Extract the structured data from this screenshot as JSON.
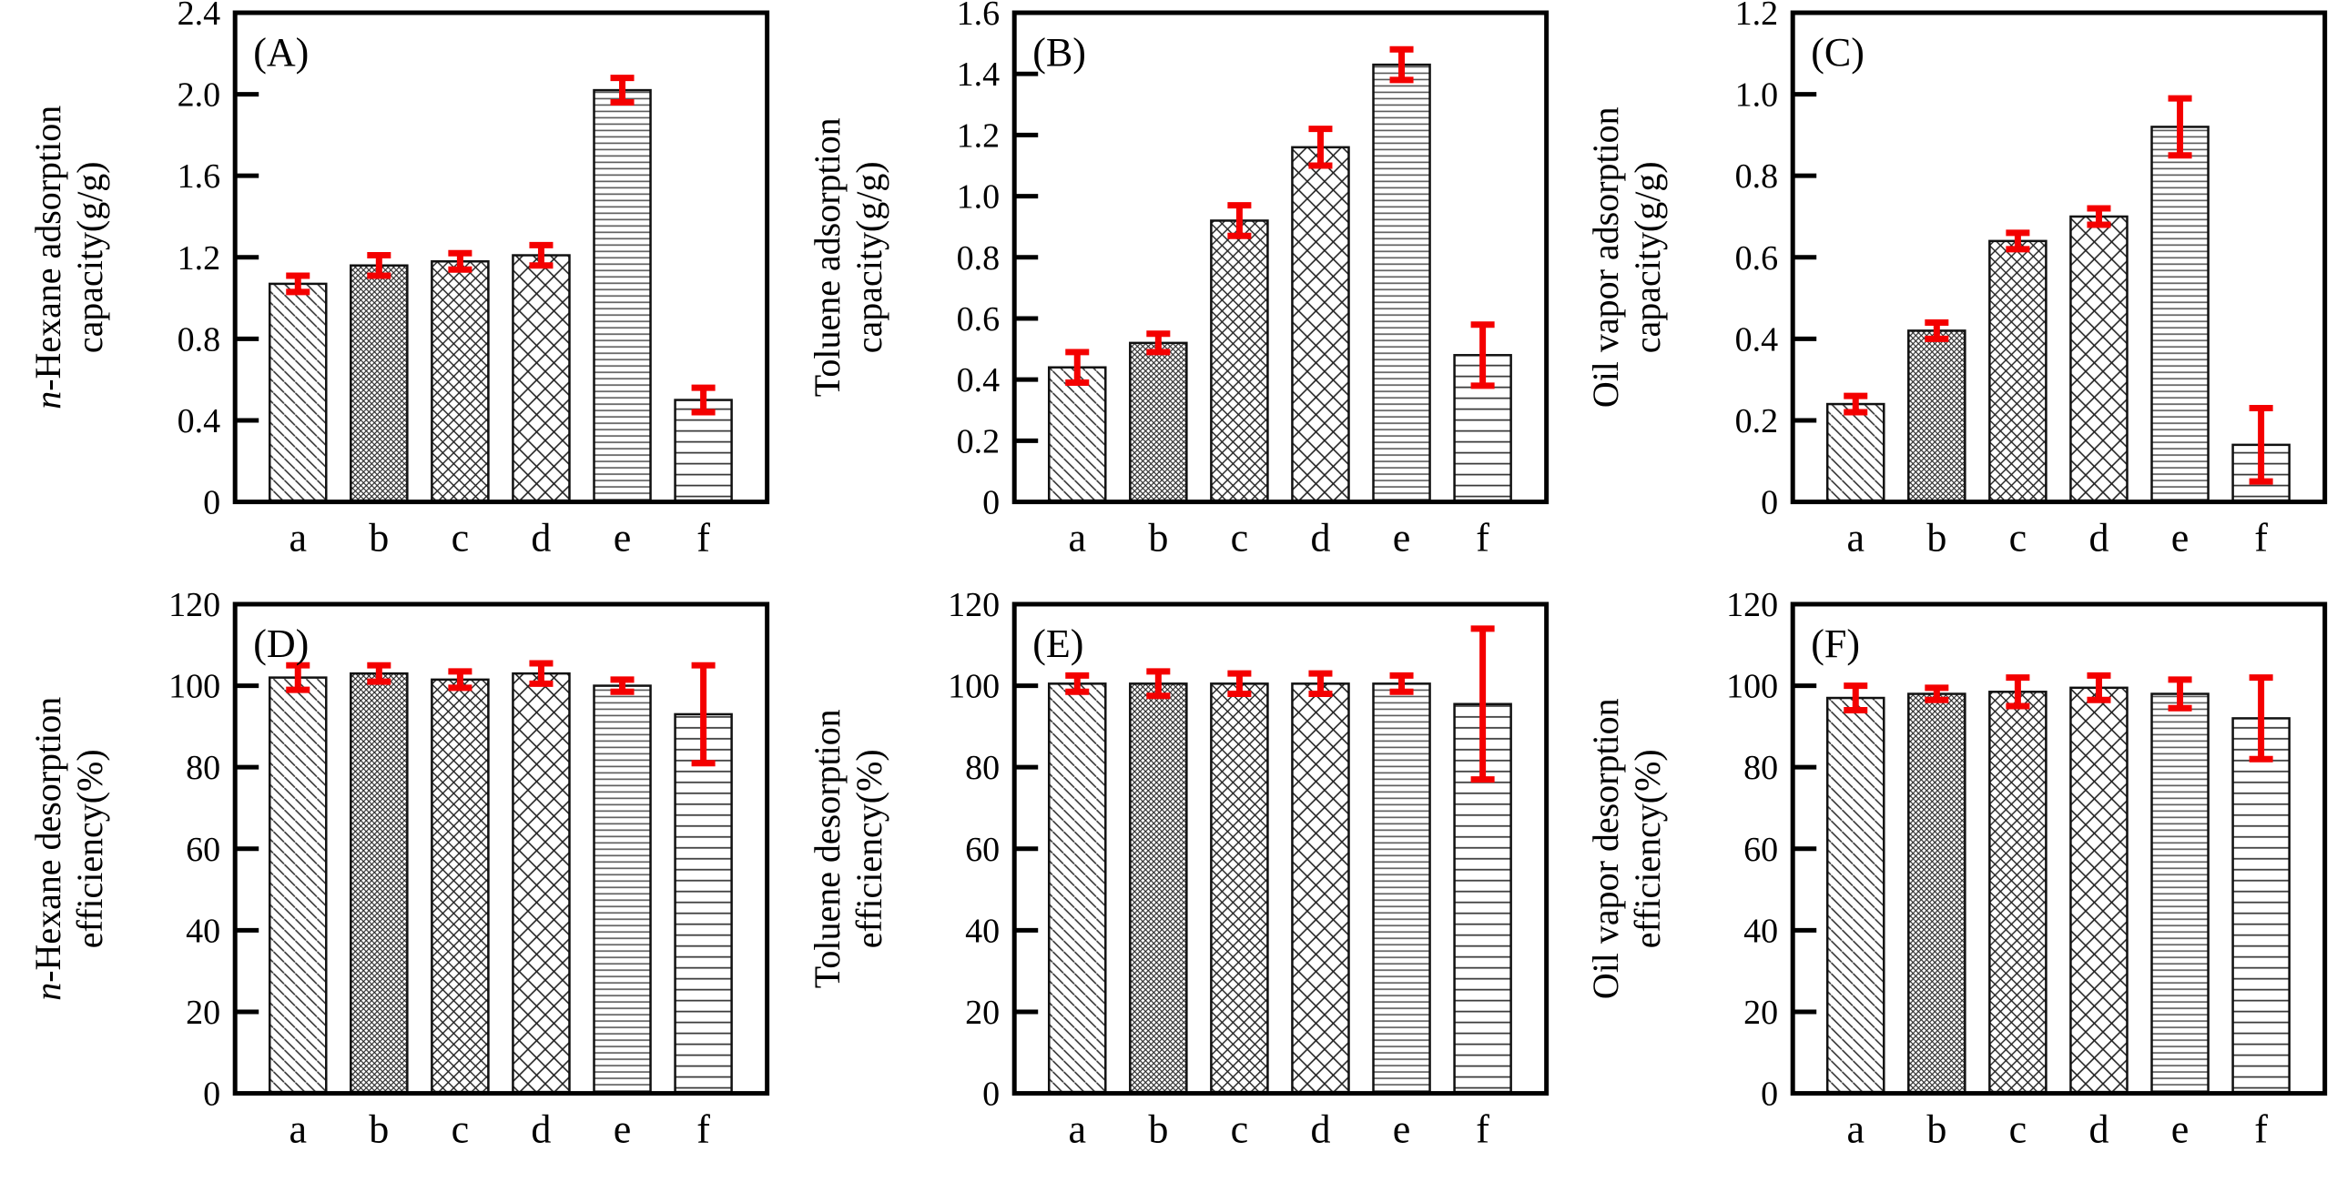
{
  "figure": {
    "background": "#ffffff",
    "error_bar_color": "#f40000",
    "bar_fill": "#ffffff",
    "bar_outline": "#111111",
    "categories": [
      "a",
      "b",
      "c",
      "d",
      "e",
      "f"
    ],
    "bar_patterns": [
      "diagonal-lines",
      "fine-crosshatch",
      "crosshatch-medium",
      "crosshatch-large",
      "horizontal-dense",
      "horizontal-sparse"
    ]
  },
  "chart_data": [
    {
      "type": "bar",
      "id": "A",
      "panel_label": "(A)",
      "ylabel_lines": [
        "n-Hexane adsorption",
        "capacity(g/g)"
      ],
      "ylabel": "n-Hexane adsorption capacity(g/g)",
      "xlabel": "",
      "ylim": [
        0,
        2.4
      ],
      "ytick_step": 0.4,
      "ytick_decimals": 1,
      "grid": false,
      "legend": false,
      "categories": [
        "a",
        "b",
        "c",
        "d",
        "e",
        "f"
      ],
      "values": [
        1.07,
        1.16,
        1.18,
        1.21,
        2.02,
        0.5
      ],
      "errors": [
        0.04,
        0.05,
        0.04,
        0.05,
        0.06,
        0.06
      ]
    },
    {
      "type": "bar",
      "id": "B",
      "panel_label": "(B)",
      "ylabel_lines": [
        "Toluene adsorption",
        "capacity(g/g)"
      ],
      "ylabel": "Toluene adsorption capacity(g/g)",
      "xlabel": "",
      "ylim": [
        0,
        1.6
      ],
      "ytick_step": 0.2,
      "ytick_decimals": 1,
      "grid": false,
      "legend": false,
      "categories": [
        "a",
        "b",
        "c",
        "d",
        "e",
        "f"
      ],
      "values": [
        0.44,
        0.52,
        0.92,
        1.16,
        1.43,
        0.48
      ],
      "errors": [
        0.05,
        0.03,
        0.05,
        0.06,
        0.05,
        0.1
      ]
    },
    {
      "type": "bar",
      "id": "C",
      "panel_label": "(C)",
      "ylabel_lines": [
        "Oil vapor adsorption",
        "capacity(g/g)"
      ],
      "ylabel": "Oil vapor adsorption capacity(g/g)",
      "xlabel": "",
      "ylim": [
        0,
        1.2
      ],
      "ytick_step": 0.2,
      "ytick_decimals": 1,
      "grid": false,
      "legend": false,
      "categories": [
        "a",
        "b",
        "c",
        "d",
        "e",
        "f"
      ],
      "values": [
        0.24,
        0.42,
        0.64,
        0.7,
        0.92,
        0.14
      ],
      "errors": [
        0.02,
        0.02,
        0.02,
        0.02,
        0.07,
        0.09
      ]
    },
    {
      "type": "bar",
      "id": "D",
      "panel_label": "(D)",
      "ylabel_lines": [
        "n-Hexane desorption",
        "efficiency(%)"
      ],
      "ylabel": "n-Hexane desorption efficiency(%)",
      "xlabel": "",
      "ylim": [
        0,
        120
      ],
      "ytick_step": 20,
      "ytick_decimals": 0,
      "grid": false,
      "legend": false,
      "categories": [
        "a",
        "b",
        "c",
        "d",
        "e",
        "f"
      ],
      "values": [
        102,
        103,
        101.5,
        103,
        100,
        93
      ],
      "errors": [
        3,
        2,
        2,
        2.5,
        1.5,
        12
      ]
    },
    {
      "type": "bar",
      "id": "E",
      "panel_label": "(E)",
      "ylabel_lines": [
        "Toluene desorption",
        "efficiency(%)"
      ],
      "ylabel": "Toluene desorption efficiency(%)",
      "xlabel": "",
      "ylim": [
        0,
        120
      ],
      "ytick_step": 20,
      "ytick_decimals": 0,
      "grid": false,
      "legend": false,
      "categories": [
        "a",
        "b",
        "c",
        "d",
        "e",
        "f"
      ],
      "values": [
        100.5,
        100.5,
        100.5,
        100.5,
        100.5,
        95.5
      ],
      "errors": [
        2,
        3,
        2.5,
        2.5,
        2,
        18.5
      ]
    },
    {
      "type": "bar",
      "id": "F",
      "panel_label": "(F)",
      "ylabel_lines": [
        "Oil vapor desorption",
        "efficiency(%)"
      ],
      "ylabel": "Oil vapor desorption efficiency(%)",
      "xlabel": "",
      "ylim": [
        0,
        120
      ],
      "ytick_step": 20,
      "ytick_decimals": 0,
      "grid": false,
      "legend": false,
      "categories": [
        "a",
        "b",
        "c",
        "d",
        "e",
        "f"
      ],
      "values": [
        97,
        98,
        98.5,
        99.5,
        98,
        92
      ],
      "errors": [
        3,
        1.5,
        3.5,
        3,
        3.5,
        10
      ]
    }
  ]
}
